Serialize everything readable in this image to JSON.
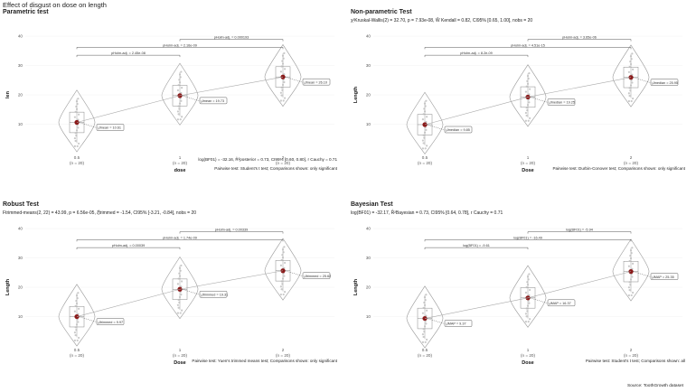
{
  "title": "Effect of disgust on dose on length",
  "source": "Source: ToothGrowth dataset",
  "chart_data": [
    {
      "type": "violin",
      "title": "Parametric test",
      "subtitle": "",
      "xlabel": "dose",
      "ylabel": "len",
      "ylim": [
        0,
        40
      ],
      "yticks": [
        10,
        20,
        30,
        40
      ],
      "categories": [
        "0.5",
        "1",
        "2"
      ],
      "n_labels": [
        "(n = 20)",
        "(n = 20)",
        "(n = 20)"
      ],
      "centers": [
        10.61,
        19.73,
        26.1
      ],
      "center_labels": [
        "μ̂mean = 10.61",
        "μ̂mean = 19.73",
        "μ̂mean = 26.10"
      ],
      "pairwise": [
        {
          "from": 0,
          "to": 1,
          "label": "pHolm-adj. = 2.45e-08"
        },
        {
          "from": 0,
          "to": 2,
          "label": "pHolm-adj. = 2.16e-09"
        },
        {
          "from": 1,
          "to": 2,
          "label": "pHolm-adj. = 0.000193"
        }
      ],
      "stats": "log(BF01) = -32.16, R̂²posterior = 0.73, CI95% [0.60, 0.80], r Cauchy = 0.71",
      "caption": "Pairwise test: Student's t test; Comparisons shown: only significant"
    },
    {
      "type": "violin",
      "title": "Non-parametric Test",
      "subtitle": "χ²Kruskal-Wallis(2) = 32.70, p = 7.93e-08, Ŵ Kendall = 0.82, CI95% [0.65, 1.00], nobs = 20",
      "xlabel": "Dose",
      "ylabel": "Length",
      "ylim": [
        0,
        40
      ],
      "yticks": [
        10,
        20,
        30,
        40
      ],
      "categories": [
        "0.5",
        "1",
        "2"
      ],
      "n_labels": [
        "(n = 20)",
        "(n = 20)",
        "(n = 20)"
      ],
      "centers": [
        9.85,
        19.25,
        25.95
      ],
      "center_labels": [
        "μ̂median = 9.85",
        "μ̂median = 19.25",
        "μ̂median = 25.95"
      ],
      "pairwise": [
        {
          "from": 0,
          "to": 1,
          "label": "pHolm-adj. = 8.2e-09"
        },
        {
          "from": 0,
          "to": 2,
          "label": "pHolm-adj. = 4.51e-15"
        },
        {
          "from": 1,
          "to": 2,
          "label": "pHolm-adj. = 3.65e-06"
        }
      ],
      "stats": "",
      "caption": "Pairwise test: Durbin-Conover test; Comparisons shown: only significant"
    },
    {
      "type": "violin",
      "title": "Robust Test",
      "subtitle": "Ftrimmed-means(2, 22) = 43.99, p = 6.56e-05, ξ̂trimmed = -1.54, CI95% [-3.21, -0.84], nobs = 20",
      "xlabel": "Dose",
      "ylabel": "Length",
      "ylim": [
        0,
        40
      ],
      "yticks": [
        10,
        20,
        30,
        40
      ],
      "categories": [
        "0.5",
        "1",
        "2"
      ],
      "n_labels": [
        "(n = 20)",
        "(n = 20)",
        "(n = 20)"
      ],
      "centers": [
        9.97,
        19.31,
        25.62
      ],
      "center_labels": [
        "μ̂trimmed = 9.97",
        "μ̂trimmed = 19.31",
        "μ̂trimmed = 25.62"
      ],
      "pairwise": [
        {
          "from": 0,
          "to": 1,
          "label": "pHolm-adj. = 0.00039"
        },
        {
          "from": 0,
          "to": 2,
          "label": "pHolm-adj. = 1.74e-09"
        },
        {
          "from": 1,
          "to": 2,
          "label": "pHolm-adj. = 0.00339"
        }
      ],
      "stats": "",
      "caption": "Pairwise test: Yuen's trimmed means test; Comparisons shown: only significant"
    },
    {
      "type": "violin",
      "title": "Bayesian Test",
      "subtitle": "log(BF01) = -32.17, R̂²Bayesian = 0.73, CI95% [0.64, 0.78], r Cauchy = 0.71",
      "xlabel": "Dose",
      "ylabel": "Length",
      "ylim": [
        0,
        40
      ],
      "yticks": [
        10,
        20,
        30,
        40
      ],
      "categories": [
        "0.5",
        "1",
        "2"
      ],
      "n_labels": [
        "(n = 20)",
        "(n = 20)",
        "(n = 20)"
      ],
      "centers": [
        9.37,
        16.37,
        25.35
      ],
      "center_labels": [
        "μ̂MAP = 9.37",
        "μ̂MAP = 16.37",
        "μ̂MAP = 25.35"
      ],
      "pairwise": [
        {
          "from": 0,
          "to": 1,
          "label": "log(BF01) = -9.61"
        },
        {
          "from": 0,
          "to": 2,
          "label": "log(BF01) = -16.49"
        },
        {
          "from": 1,
          "to": 2,
          "label": "log(BF01) = -5.94"
        }
      ],
      "stats": "",
      "caption": "Pairwise test: Student's t test; Comparisons shown: all"
    }
  ]
}
